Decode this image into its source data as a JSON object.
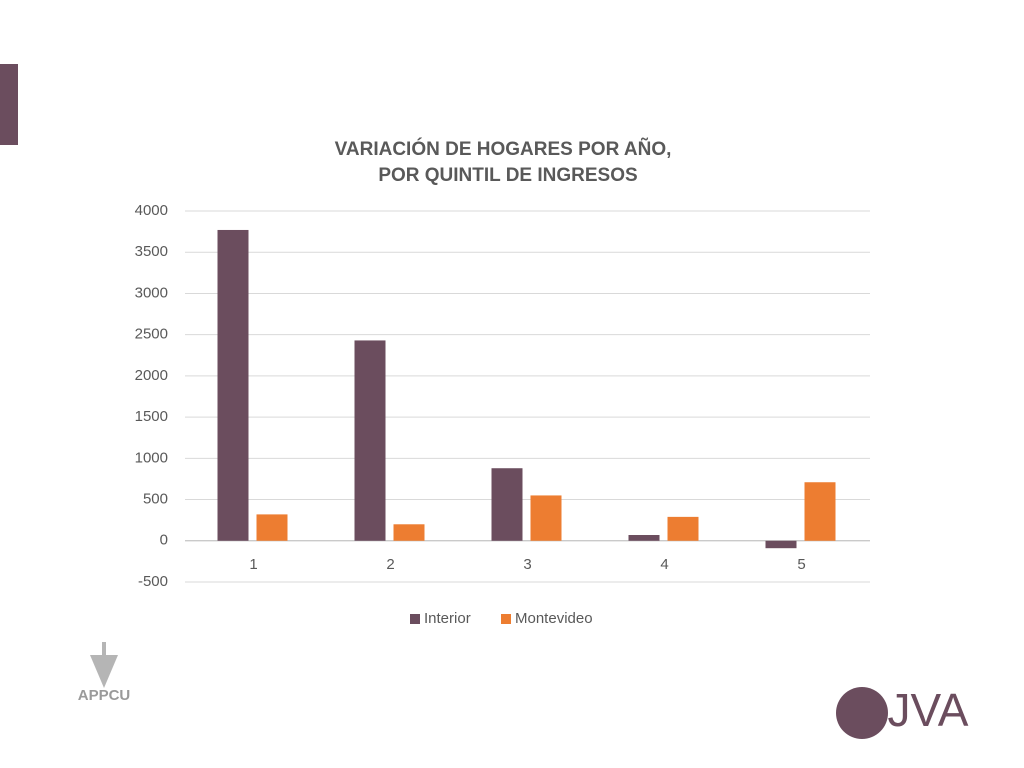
{
  "chart_data": {
    "type": "bar",
    "title": [
      "VARIACIÓN DE HOGARES POR AÑO,",
      "POR QUINTIL DE INGRESOS"
    ],
    "categories": [
      "1",
      "2",
      "3",
      "4",
      "5"
    ],
    "series": [
      {
        "name": "Interior",
        "color": "#6b4d5e",
        "values": [
          3770,
          2430,
          880,
          70,
          -90
        ]
      },
      {
        "name": "Montevideo",
        "color": "#ed7d31",
        "values": [
          320,
          200,
          550,
          290,
          710
        ]
      }
    ],
    "ylim": [
      -500,
      4000
    ],
    "yticks": [
      -500,
      0,
      500,
      1000,
      1500,
      2000,
      2500,
      3000,
      3500,
      4000
    ],
    "grid": true,
    "legend": "bottom"
  },
  "logos": {
    "left": "APPCU",
    "right": "JVA"
  }
}
